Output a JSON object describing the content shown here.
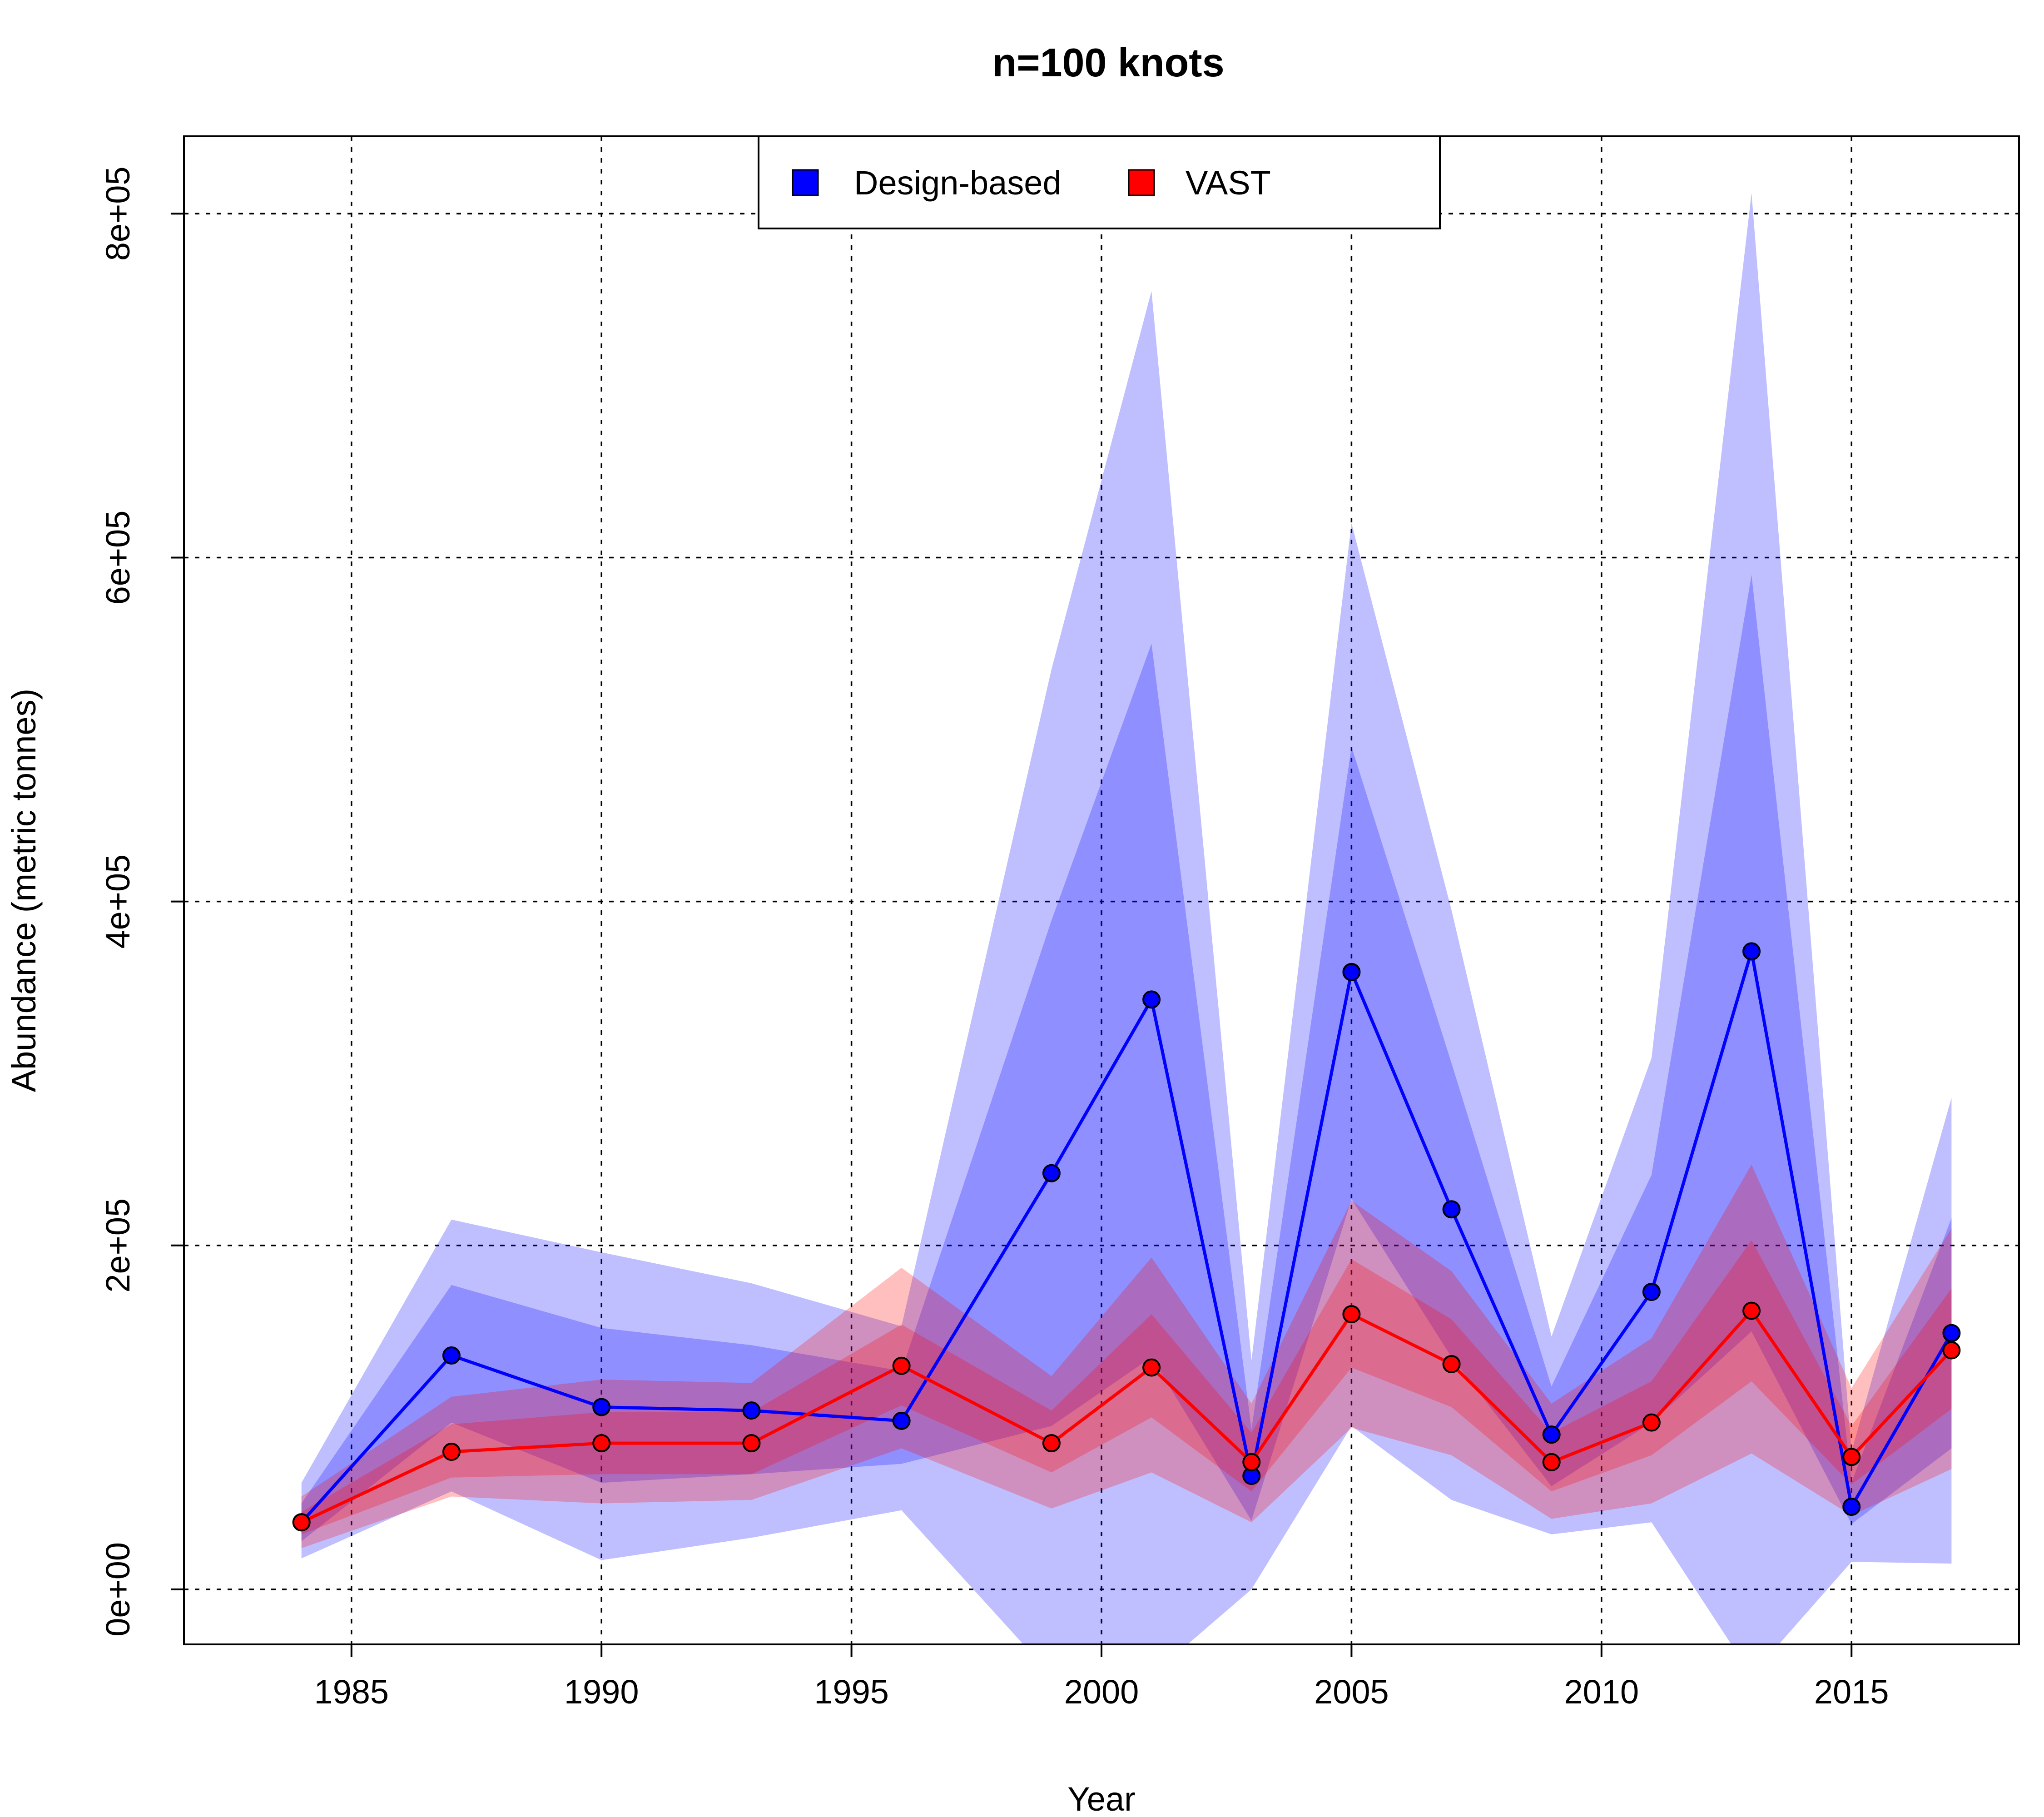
{
  "chart_data": {
    "type": "line",
    "title": "n=100 knots",
    "xlabel": "Year",
    "ylabel": "Abundance (metric tonnes)",
    "xlim": [
      1981.65,
      2018.35
    ],
    "ylim": [
      -32000,
      845000
    ],
    "x_ticks": [
      1985,
      1990,
      1995,
      2000,
      2005,
      2010,
      2015
    ],
    "y_ticks": [
      0,
      200000,
      400000,
      600000,
      800000
    ],
    "y_tick_labels": [
      "0e+00",
      "2e+05",
      "4e+05",
      "6e+05",
      "8e+05"
    ],
    "grid": true,
    "legend_position": "top",
    "legend_entries": [
      "Design-based",
      "VAST"
    ],
    "series": [
      {
        "name": "Design-based",
        "color": "#0000ff",
        "x": [
          1984,
          1987,
          1990,
          1993,
          1996,
          1999,
          2001,
          2003,
          2005,
          2007,
          2009,
          2011,
          2013,
          2015,
          2017
        ],
        "y": [
          39000,
          136000,
          106000,
          104000,
          98000,
          242000,
          343000,
          66000,
          359000,
          221000,
          90000,
          173000,
          371000,
          48000,
          149000
        ],
        "inner_lower": [
          28000,
          97000,
          62000,
          67000,
          73000,
          95000,
          135000,
          40000,
          227000,
          135000,
          60000,
          97000,
          150000,
          38000,
          82000
        ],
        "inner_upper": [
          50000,
          177000,
          152000,
          142000,
          127000,
          389000,
          550000,
          93000,
          490000,
          306000,
          118000,
          241000,
          590000,
          62000,
          216000
        ],
        "outer_lower": [
          18000,
          57000,
          17000,
          30000,
          46000,
          -50000,
          -50000,
          0,
          95000,
          52000,
          32000,
          39000,
          -50000,
          16000,
          15000
        ],
        "outer_upper": [
          62000,
          215000,
          196000,
          178000,
          153000,
          535000,
          755000,
          133000,
          620000,
          395000,
          147000,
          309000,
          812000,
          80000,
          286000
        ]
      },
      {
        "name": "VAST",
        "color": "#ff0000",
        "x": [
          1984,
          1987,
          1990,
          1993,
          1996,
          1999,
          2001,
          2003,
          2005,
          2007,
          2009,
          2011,
          2013,
          2015,
          2017
        ],
        "y": [
          39000,
          80000,
          85000,
          85000,
          130000,
          85000,
          129000,
          74000,
          160000,
          131000,
          74000,
          97000,
          162000,
          77000,
          139000
        ],
        "inner_lower": [
          32000,
          65000,
          67000,
          67000,
          107000,
          68000,
          100000,
          57000,
          129000,
          106000,
          57000,
          78000,
          121000,
          61000,
          105000
        ],
        "inner_upper": [
          45000,
          96000,
          103000,
          103000,
          154000,
          104000,
          160000,
          91000,
          192000,
          157000,
          91000,
          121000,
          203000,
          95000,
          175000
        ],
        "outer_lower": [
          24000,
          54000,
          50000,
          52000,
          82000,
          47000,
          68000,
          39000,
          94000,
          78000,
          41000,
          50000,
          79000,
          43000,
          70000
        ],
        "outer_upper": [
          54000,
          112000,
          122000,
          120000,
          187000,
          124000,
          193000,
          108000,
          226000,
          185000,
          108000,
          146000,
          247000,
          117000,
          210000
        ]
      }
    ]
  }
}
